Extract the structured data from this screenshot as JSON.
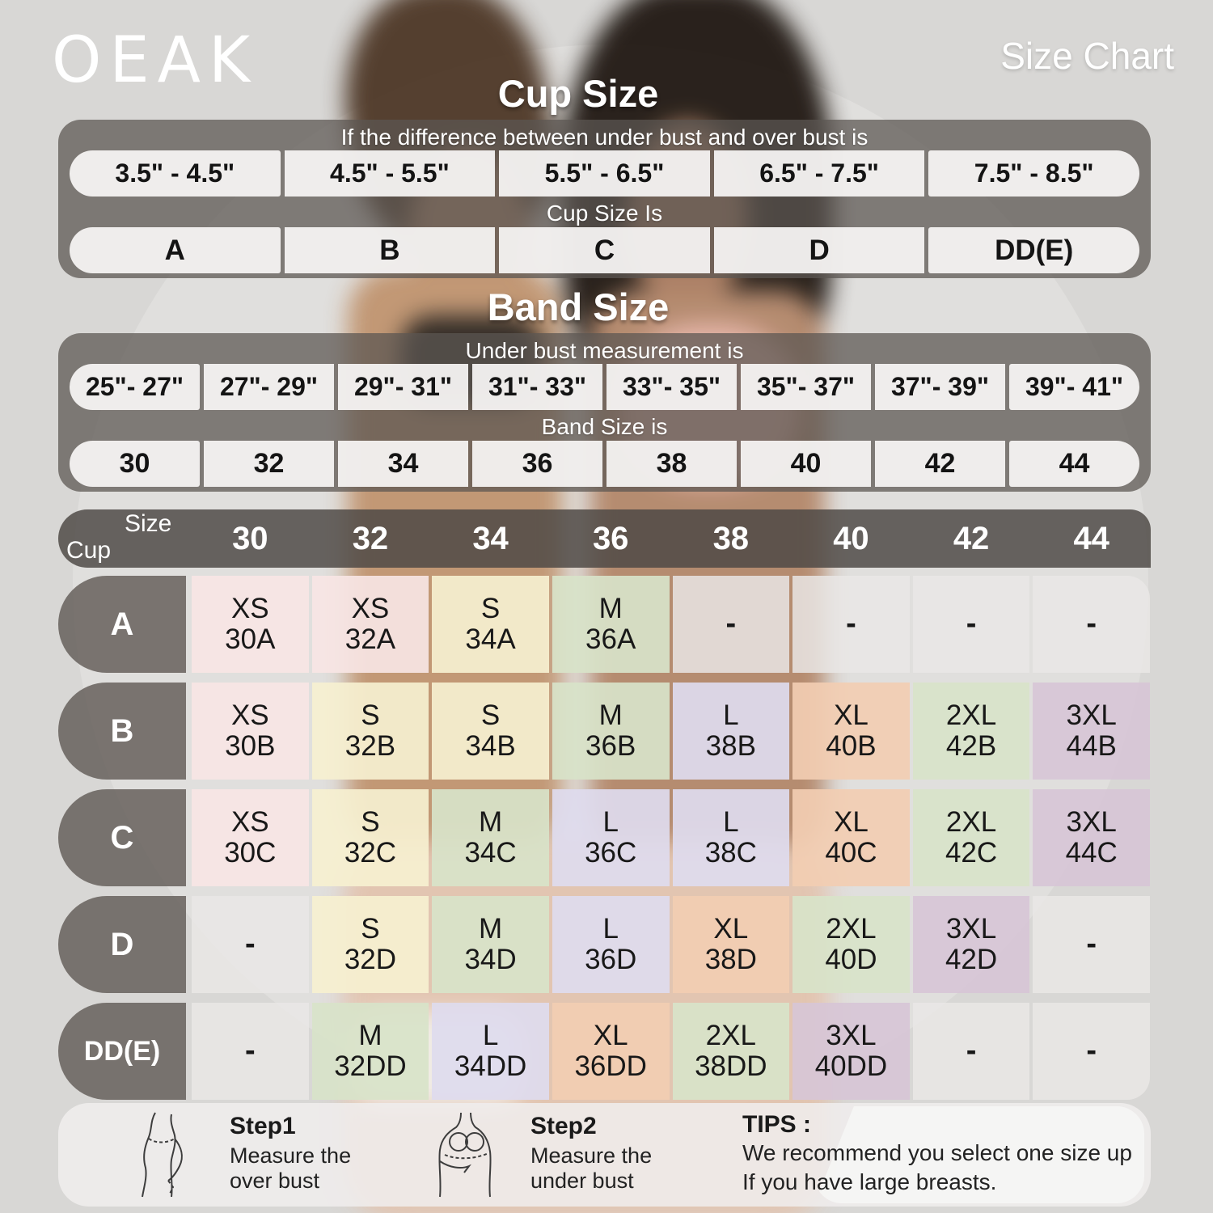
{
  "brand": "OEAK",
  "page_title": "Size Chart",
  "cup_size_section": {
    "title": "Cup Size",
    "instruction": "If the  difference between under bust and over bust is",
    "ranges": [
      "3.5\" -  4.5\"",
      "4.5\" -  5.5\"",
      "5.5\" -  6.5\"",
      "6.5\" -  7.5\"",
      "7.5\" -  8.5\""
    ],
    "result_label": "Cup Size Is",
    "cups": [
      "A",
      "B",
      "C",
      "D",
      "DD(E)"
    ]
  },
  "band_size_section": {
    "title": "Band Size",
    "instruction": "Under bust measurement is",
    "ranges": [
      "25\"- 27\"",
      "27\"- 29\"",
      "29\"- 31\"",
      "31\"- 33\"",
      "33\"- 35\"",
      "35\"- 37\"",
      "37\"- 39\"",
      "39\"- 41\""
    ],
    "result_label": "Band Size is",
    "bands": [
      "30",
      "32",
      "34",
      "36",
      "38",
      "40",
      "42",
      "44"
    ]
  },
  "matrix": {
    "corner": {
      "top": "Size",
      "bottom": "Cup"
    },
    "columns": [
      "30",
      "32",
      "34",
      "36",
      "38",
      "40",
      "42",
      "44"
    ],
    "rows": [
      {
        "cup": "A",
        "cells": [
          {
            "size": "XS",
            "code": "30A",
            "color": "pink"
          },
          {
            "size": "XS",
            "code": "32A",
            "color": "pink"
          },
          {
            "size": "S",
            "code": "34A",
            "color": "cream"
          },
          {
            "size": "M",
            "code": "36A",
            "color": "green"
          },
          {
            "size": "-",
            "code": "",
            "color": "empty"
          },
          {
            "size": "-",
            "code": "",
            "color": "empty"
          },
          {
            "size": "-",
            "code": "",
            "color": "empty"
          },
          {
            "size": "-",
            "code": "",
            "color": "empty"
          }
        ]
      },
      {
        "cup": "B",
        "cells": [
          {
            "size": "XS",
            "code": "30B",
            "color": "pink"
          },
          {
            "size": "S",
            "code": "32B",
            "color": "cream"
          },
          {
            "size": "S",
            "code": "34B",
            "color": "cream"
          },
          {
            "size": "M",
            "code": "36B",
            "color": "green"
          },
          {
            "size": "L",
            "code": "38B",
            "color": "lavender"
          },
          {
            "size": "XL",
            "code": "40B",
            "color": "peach"
          },
          {
            "size": "2XL",
            "code": "42B",
            "color": "green"
          },
          {
            "size": "3XL",
            "code": "44B",
            "color": "mauve"
          }
        ]
      },
      {
        "cup": "C",
        "cells": [
          {
            "size": "XS",
            "code": "30C",
            "color": "pink"
          },
          {
            "size": "S",
            "code": "32C",
            "color": "cream"
          },
          {
            "size": "M",
            "code": "34C",
            "color": "green"
          },
          {
            "size": "L",
            "code": "36C",
            "color": "lavender"
          },
          {
            "size": "L",
            "code": "38C",
            "color": "lavender"
          },
          {
            "size": "XL",
            "code": "40C",
            "color": "peach"
          },
          {
            "size": "2XL",
            "code": "42C",
            "color": "green"
          },
          {
            "size": "3XL",
            "code": "44C",
            "color": "mauve"
          }
        ]
      },
      {
        "cup": "D",
        "cells": [
          {
            "size": "-",
            "code": "",
            "color": "empty"
          },
          {
            "size": "S",
            "code": "32D",
            "color": "cream"
          },
          {
            "size": "M",
            "code": "34D",
            "color": "green"
          },
          {
            "size": "L",
            "code": "36D",
            "color": "lavender"
          },
          {
            "size": "XL",
            "code": "38D",
            "color": "peach"
          },
          {
            "size": "2XL",
            "code": "40D",
            "color": "green"
          },
          {
            "size": "3XL",
            "code": "42D",
            "color": "mauve"
          },
          {
            "size": "-",
            "code": "",
            "color": "empty"
          }
        ]
      },
      {
        "cup": "DD(E)",
        "cells": [
          {
            "size": "-",
            "code": "",
            "color": "empty"
          },
          {
            "size": "M",
            "code": "32DD",
            "color": "green"
          },
          {
            "size": "L",
            "code": "34DD",
            "color": "lavender"
          },
          {
            "size": "XL",
            "code": "36DD",
            "color": "peach"
          },
          {
            "size": "2XL",
            "code": "38DD",
            "color": "green"
          },
          {
            "size": "3XL",
            "code": "40DD",
            "color": "mauve"
          },
          {
            "size": "-",
            "code": "",
            "color": "empty"
          },
          {
            "size": "-",
            "code": "",
            "color": "empty"
          }
        ]
      }
    ]
  },
  "steps": [
    {
      "label": "Step1",
      "line1": "Measure the",
      "line2": "over bust"
    },
    {
      "label": "Step2",
      "line1": "Measure the",
      "line2": "under bust"
    }
  ],
  "tips": {
    "label": "TIPS :",
    "line1": "We recommend you select one size up",
    "line2": "If you have large breasts."
  },
  "colors": {
    "pink": "rgba(247,229,228,.92)",
    "cream": "rgba(246,240,208,.92)",
    "green": "rgba(216,227,201,.92)",
    "lavender": "rgba(222,219,238,.92)",
    "peach": "rgba(242,205,178,.92)",
    "mauve": "rgba(215,197,214,.92)",
    "empty": "rgba(233,231,230,.84)"
  }
}
